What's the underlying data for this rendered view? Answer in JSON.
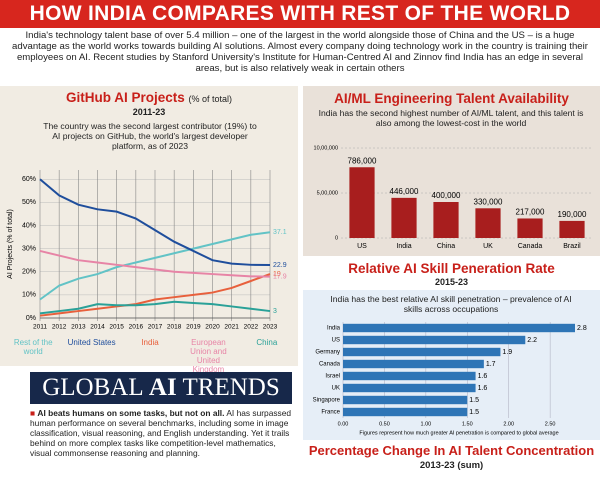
{
  "header": {
    "title": "HOW INDIA COMPARES WITH REST OF THE WORLD"
  },
  "intro": "India's technology talent base of over 5.4 million – one of the largest in the world alongside those of China and the US – is a huge advantage as the world works towards building AI solutions. Almost every company doing technology work in the country is training their employees on AI. Recent studies by Stanford University's Institute for Human-Centred AI and Zinnov find India has an edge in several areas, but is also relatively weak in certain others",
  "chart_data": [
    {
      "type": "line",
      "title": "GitHub AI Projects",
      "title_unit": "(% of total)",
      "subtitle": "2011-23",
      "note": "The country was the second largest contributor (19%) to AI projects on GitHub, the world's largest developer platform, as of 2023",
      "ylabel": "AI Projects (% of total)",
      "x": [
        2011,
        2012,
        2013,
        2014,
        2015,
        2016,
        2017,
        2018,
        2019,
        2020,
        2021,
        2022,
        2023
      ],
      "xlim": [
        2011,
        2023
      ],
      "ylim": [
        0,
        64
      ],
      "yticks": [
        {
          "value": 0,
          "label": "0%"
        },
        {
          "value": 10,
          "label": "10%"
        },
        {
          "value": 20,
          "label": "20%"
        },
        {
          "value": 30,
          "label": "30%"
        },
        {
          "value": 40,
          "label": "40%"
        },
        {
          "value": 50,
          "label": "50%"
        },
        {
          "value": 60,
          "label": "60%"
        }
      ],
      "grid": true,
      "series": [
        {
          "name": "Rest of the world",
          "color": "#62c3c6",
          "values": [
            8,
            14,
            17,
            19,
            22,
            24,
            26,
            28,
            30,
            32,
            34,
            36,
            37.1
          ]
        },
        {
          "name": "United States",
          "color": "#1f4e9c",
          "values": [
            60,
            53,
            49,
            47,
            46,
            43,
            38,
            33,
            29,
            25,
            23.5,
            23,
            22.9
          ]
        },
        {
          "name": "India",
          "color": "#e8603c",
          "values": [
            1,
            2,
            3,
            4,
            5,
            6,
            8,
            9,
            10,
            11,
            13,
            16,
            19
          ]
        },
        {
          "name": "European Union and United Kingdom",
          "color": "#e784a6",
          "values": [
            29,
            27,
            25,
            24,
            23,
            22,
            21,
            20,
            19.5,
            19,
            18.5,
            18,
            17.9
          ]
        },
        {
          "name": "China",
          "color": "#2aa198",
          "values": [
            2,
            3,
            4,
            6,
            5.5,
            5.5,
            6,
            7,
            6.5,
            6,
            5,
            4,
            3
          ]
        }
      ]
    },
    {
      "type": "bar",
      "title": "AI/ML Engineering Talent Availability",
      "note": "India has the second highest number of AI/ML talent, and this talent is also among the lowest-cost in the world",
      "categories": [
        "US",
        "India",
        "China",
        "UK",
        "Canada",
        "Brazil"
      ],
      "values": [
        786000,
        446000,
        400000,
        330000,
        217000,
        190000
      ],
      "value_labels": [
        "786,000",
        "446,000",
        "400,000",
        "330,000",
        "217,000",
        "190,000"
      ],
      "color": "#a81e1e",
      "ylim": [
        0,
        1000000
      ],
      "yticks": [
        0,
        {
          "value": 500000,
          "label": "5,00,000"
        },
        {
          "value": 1000000,
          "label": "10,00,000"
        }
      ],
      "grid": true
    },
    {
      "type": "hbar",
      "title": "Relative AI Skill Peneration Rate",
      "subtitle": "2015-23",
      "note": "India has the best relative AI skill penetration – prevalence of AI skills across occupations",
      "categories": [
        "India",
        "US",
        "Germany",
        "Canada",
        "Israel",
        "UK",
        "Singapore",
        "France"
      ],
      "values": [
        2.8,
        2.2,
        1.9,
        1.7,
        1.6,
        1.6,
        1.5,
        1.5
      ],
      "color": "#2e75b6",
      "xlim": [
        0,
        2.8
      ],
      "xticks": [
        {
          "value": 0,
          "label": "0.00"
        },
        {
          "value": 0.5,
          "label": "0.50"
        },
        {
          "value": 1,
          "label": "1.00"
        },
        {
          "value": 1.5,
          "label": "1.50"
        },
        {
          "value": 2,
          "label": "2.00"
        },
        {
          "value": 2.5,
          "label": "2.50"
        }
      ],
      "grid": true,
      "footnote": "Figures represent how much greater AI penetration is compared to global average"
    }
  ],
  "trends": {
    "title_1": "GLOBAL",
    "title_2": "AI",
    "title_3": "TRENDS",
    "bullet_bold": "AI beats humans on some tasks, but not on all.",
    "bullet_text": "AI has surpassed human performance on several benchmarks, including some in image classification, visual reasoning, and English understanding. Yet it trails behind on more complex tasks like competition-level mathematics, visual commonsense reasoning and planning."
  },
  "next_section": {
    "title": "Percentage Change In AI Talent Concentration",
    "subtitle": "2013-23 (sum)"
  }
}
